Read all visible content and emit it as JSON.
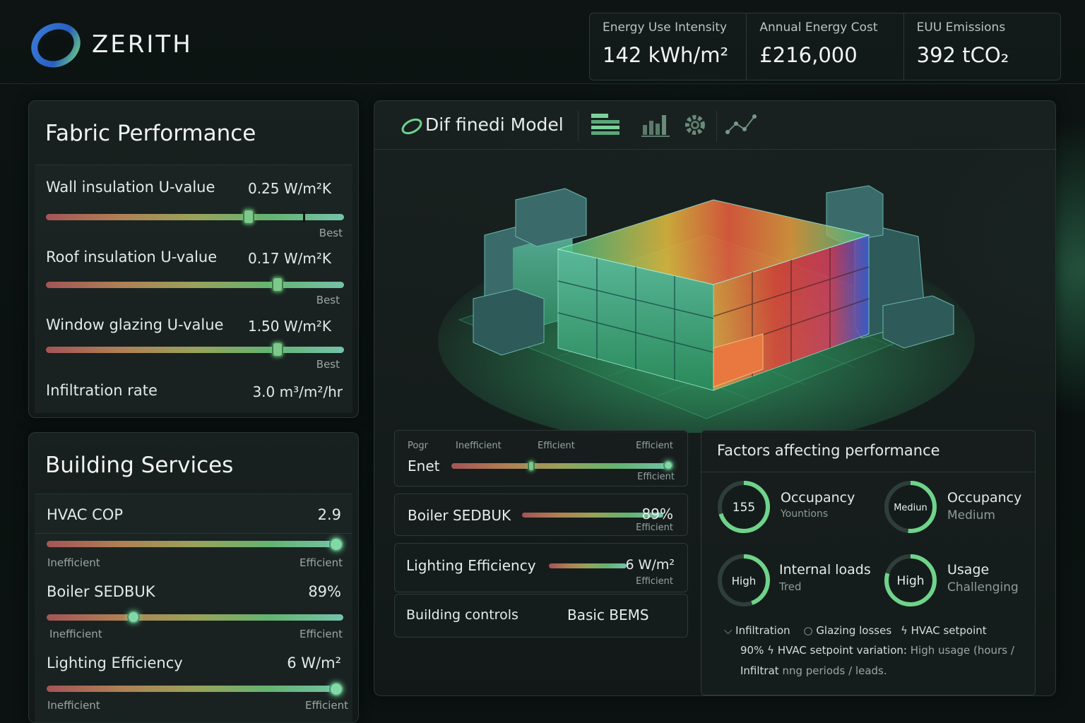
{
  "brand": {
    "name": "ZERITH"
  },
  "kpis": [
    {
      "label": "Energy Use Intensity",
      "value": "142 kWh/m²"
    },
    {
      "label": "Annual Energy Cost",
      "value": "£216,000"
    },
    {
      "label": "EUU Emissions",
      "value": "392 tCO₂"
    }
  ],
  "fabric": {
    "title": "Fabric Performance",
    "rows": [
      {
        "label": "Wall insulation U-value",
        "value": "0.25 W/m²K",
        "end_label": "Best",
        "level": 0.68
      },
      {
        "label": "Roof insulation U-value",
        "value": "0.17 W/m²K",
        "end_label": "Best",
        "level": 0.78
      },
      {
        "label": "Window glazing U-value",
        "value": "1.50 W/m²K",
        "end_label": "Best",
        "level": 0.78
      },
      {
        "label": "Infiltration rate",
        "value": "3.0 m³/m²/hr"
      }
    ]
  },
  "services": {
    "title": "Building Services",
    "rows": [
      {
        "label": "HVAC COP",
        "value": "2.9",
        "left": "Inefficient",
        "right": "Efficient",
        "level": 1.0
      },
      {
        "label": "Boiler SEDBUK",
        "value": "89%",
        "left": "Inefficient",
        "right": "Efficient",
        "level": 0.29
      },
      {
        "label": "Lighting Efficiency",
        "value": "6 W/m²",
        "left": "Inefficient",
        "right": "Efficient",
        "level": 1.0
      }
    ]
  },
  "model": {
    "title": "Dif finedi Model",
    "tools": [
      "layers-icon",
      "bar-chart-icon",
      "gear-icon",
      "trend-icon"
    ]
  },
  "mini_cards": {
    "enet": {
      "pre": "Pogr",
      "label": "Enet",
      "t1": "Inefficient",
      "t2": "Efficient",
      "t3": "Efficient",
      "bottom": "Efficient"
    },
    "boiler": {
      "label": "Boiler SEDBUK",
      "value": "89%",
      "bottom": "Efficient"
    },
    "lighting": {
      "label": "Lighting Efficiency",
      "value": "6 W/m²",
      "bottom": "Efficient"
    },
    "controls": {
      "label": "Building controls",
      "value": "Basic BEMS"
    }
  },
  "factors": {
    "title": "Factors affecting performance",
    "items": [
      {
        "gauge": "155",
        "name": "Occupancy",
        "sub": "Yountions"
      },
      {
        "gauge": "Mediun",
        "name": "Occupancy",
        "sub": "Medium"
      },
      {
        "gauge": "High",
        "name": "Internal loads",
        "sub": "Tred"
      },
      {
        "gauge": "High",
        "name": "Usage",
        "sub": "Challenging"
      }
    ],
    "legend1": {
      "a": "Infiltration",
      "b": "Glazing losses",
      "c": "HVAC setpoint"
    },
    "legend2": {
      "a": "90%",
      "b": "HVAC setpoint variation:",
      "c": "High usage (hours /"
    },
    "legend3": {
      "a": "Infiltrat",
      "b": "nng periods / leads."
    }
  },
  "colors": {
    "accent": "#7cd39a",
    "bg": "#0b1211"
  }
}
